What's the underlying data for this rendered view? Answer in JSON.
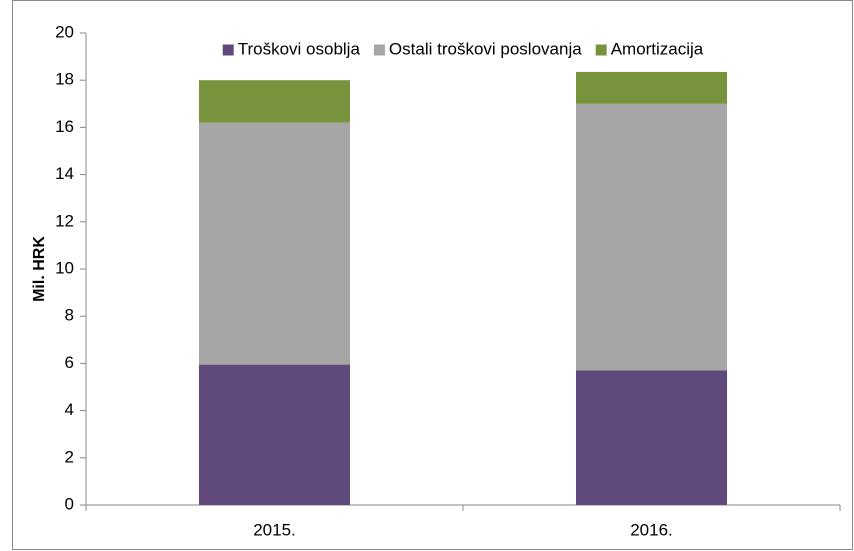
{
  "chart_data": {
    "type": "stacked_bar",
    "y_label": "Mil. HRK",
    "categories": [
      "2015.",
      "2016."
    ],
    "series": [
      {
        "name": "Troškovi osoblja",
        "color": "#604a7b",
        "values": [
          5.95,
          5.7
        ]
      },
      {
        "name": "Ostali troškovi poslovanja",
        "color": "#a6a6a6",
        "values": [
          10.25,
          11.3
        ]
      },
      {
        "name": "Amortizacija",
        "color": "#77933c",
        "values": [
          1.8,
          1.35
        ]
      }
    ],
    "ylim": [
      0,
      20
    ],
    "yticks": [
      0,
      2,
      4,
      6,
      8,
      10,
      12,
      14,
      16,
      18,
      20
    ],
    "grid": false,
    "legend": "top"
  }
}
